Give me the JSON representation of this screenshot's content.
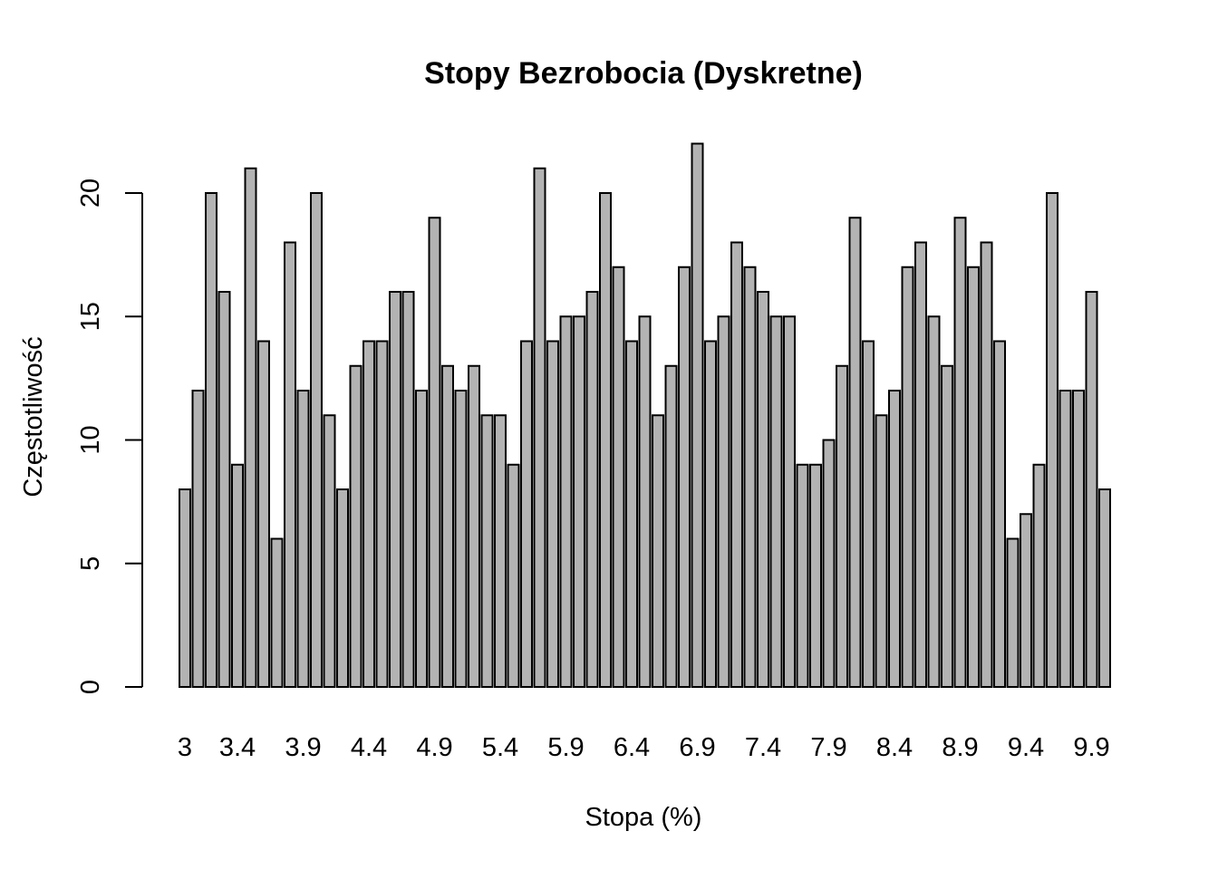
{
  "chart_data": {
    "type": "bar",
    "title": "Stopy Bezrobocia (Dyskretne)",
    "xlabel": "Stopa (%)",
    "ylabel": "Częstotliwość",
    "ylim": [
      0,
      22
    ],
    "y_ticks": [
      0,
      5,
      10,
      15,
      20
    ],
    "x_tick_labels": [
      "3",
      "3.4",
      "3.9",
      "4.4",
      "4.9",
      "5.4",
      "5.9",
      "6.4",
      "6.9",
      "7.4",
      "7.9",
      "8.4",
      "8.9",
      "9.4",
      "9.9"
    ],
    "categories": [
      "3",
      "3.1",
      "3.2",
      "3.3",
      "3.4",
      "3.5",
      "3.6",
      "3.7",
      "3.8",
      "3.9",
      "4",
      "4.1",
      "4.2",
      "4.3",
      "4.4",
      "4.5",
      "4.6",
      "4.7",
      "4.8",
      "4.9",
      "5",
      "5.1",
      "5.2",
      "5.3",
      "5.4",
      "5.5",
      "5.6",
      "5.7",
      "5.8",
      "5.9",
      "6",
      "6.1",
      "6.2",
      "6.3",
      "6.4",
      "6.5",
      "6.6",
      "6.7",
      "6.8",
      "6.9",
      "7",
      "7.1",
      "7.2",
      "7.3",
      "7.4",
      "7.5",
      "7.6",
      "7.7",
      "7.8",
      "7.9",
      "8",
      "8.1",
      "8.2",
      "8.3",
      "8.4",
      "8.5",
      "8.6",
      "8.7",
      "8.8",
      "8.9",
      "9",
      "9.1",
      "9.2",
      "9.3",
      "9.4",
      "9.5",
      "9.6",
      "9.7",
      "9.8",
      "9.9",
      "10"
    ],
    "values": [
      8,
      12,
      20,
      16,
      9,
      21,
      14,
      6,
      18,
      12,
      20,
      11,
      8,
      13,
      14,
      14,
      16,
      16,
      12,
      19,
      13,
      12,
      13,
      11,
      11,
      9,
      14,
      21,
      14,
      15,
      15,
      16,
      20,
      17,
      14,
      15,
      11,
      13,
      17,
      22,
      14,
      15,
      18,
      17,
      16,
      15,
      15,
      9,
      9,
      10,
      13,
      19,
      14,
      11,
      12,
      17,
      18,
      15,
      13,
      19,
      17,
      18,
      14,
      6,
      7,
      9,
      20,
      12,
      12,
      16,
      8
    ],
    "bar_color": "#b3b3b3",
    "grid": false,
    "legend": "none"
  }
}
